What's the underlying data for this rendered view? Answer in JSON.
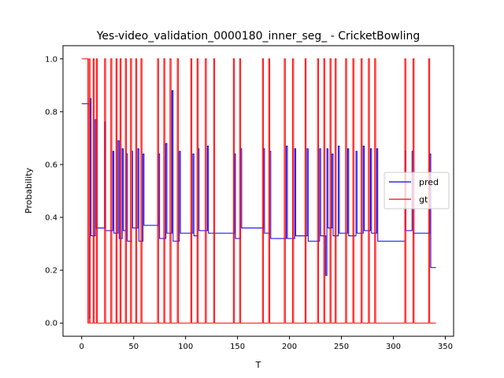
{
  "chart_data": {
    "type": "line",
    "title": "Yes-video_validation_0000180_inner_seg_ - CricketBowling",
    "xlabel": "T",
    "ylabel": "Probability",
    "xlim": [
      -18,
      358
    ],
    "ylim": [
      -0.05,
      1.05
    ],
    "xticks": [
      0,
      50,
      100,
      150,
      200,
      250,
      300,
      350
    ],
    "yticks": [
      0.0,
      0.2,
      0.4,
      0.6,
      0.8,
      1.0
    ],
    "legend_position": "center-right",
    "series": [
      {
        "name": "pred",
        "color": "#0000ff",
        "step": true,
        "points": [
          [
            0,
            0.83
          ],
          [
            6,
            0.83
          ],
          [
            7,
            0.02
          ],
          [
            8,
            0.85
          ],
          [
            9,
            0.33
          ],
          [
            12,
            0.33
          ],
          [
            13,
            0.77
          ],
          [
            14,
            0.36
          ],
          [
            21,
            0.36
          ],
          [
            22,
            0.76
          ],
          [
            23,
            0.35
          ],
          [
            29,
            0.35
          ],
          [
            30,
            0.65
          ],
          [
            31,
            0.34
          ],
          [
            34,
            0.34
          ],
          [
            35,
            0.69
          ],
          [
            36,
            0.32
          ],
          [
            38,
            0.32
          ],
          [
            39,
            0.66
          ],
          [
            40,
            0.35
          ],
          [
            42,
            0.35
          ],
          [
            43,
            0.64
          ],
          [
            44,
            0.31
          ],
          [
            47,
            0.31
          ],
          [
            48,
            0.65
          ],
          [
            49,
            0.36
          ],
          [
            53,
            0.36
          ],
          [
            54,
            0.66
          ],
          [
            55,
            0.31
          ],
          [
            58,
            0.31
          ],
          [
            59,
            0.64
          ],
          [
            60,
            0.37
          ],
          [
            73,
            0.37
          ],
          [
            74,
            0.64
          ],
          [
            75,
            0.32
          ],
          [
            80,
            0.32
          ],
          [
            81,
            0.68
          ],
          [
            82,
            0.34
          ],
          [
            86,
            0.34
          ],
          [
            87,
            0.88
          ],
          [
            88,
            0.31
          ],
          [
            93,
            0.31
          ],
          [
            94,
            0.65
          ],
          [
            95,
            0.34
          ],
          [
            106,
            0.34
          ],
          [
            107,
            0.64
          ],
          [
            108,
            0.33
          ],
          [
            111,
            0.33
          ],
          [
            112,
            0.66
          ],
          [
            113,
            0.35
          ],
          [
            120,
            0.35
          ],
          [
            121,
            0.67
          ],
          [
            122,
            0.34
          ],
          [
            146,
            0.34
          ],
          [
            147,
            0.64
          ],
          [
            148,
            0.32
          ],
          [
            152,
            0.32
          ],
          [
            153,
            0.66
          ],
          [
            154,
            0.36
          ],
          [
            174,
            0.36
          ],
          [
            175,
            0.66
          ],
          [
            176,
            0.34
          ],
          [
            180,
            0.34
          ],
          [
            181,
            0.65
          ],
          [
            182,
            0.32
          ],
          [
            196,
            0.32
          ],
          [
            197,
            0.67
          ],
          [
            198,
            0.32
          ],
          [
            204,
            0.32
          ],
          [
            205,
            0.66
          ],
          [
            206,
            0.33
          ],
          [
            216,
            0.33
          ],
          [
            217,
            0.66
          ],
          [
            218,
            0.31
          ],
          [
            228,
            0.31
          ],
          [
            229,
            0.66
          ],
          [
            230,
            0.33
          ],
          [
            234,
            0.33
          ],
          [
            235,
            0.18
          ],
          [
            236,
            0.66
          ],
          [
            237,
            0.36
          ],
          [
            240,
            0.36
          ],
          [
            241,
            0.64
          ],
          [
            242,
            0.33
          ],
          [
            246,
            0.33
          ],
          [
            247,
            0.67
          ],
          [
            248,
            0.34
          ],
          [
            255,
            0.34
          ],
          [
            256,
            0.66
          ],
          [
            257,
            0.33
          ],
          [
            263,
            0.33
          ],
          [
            264,
            0.65
          ],
          [
            265,
            0.34
          ],
          [
            270,
            0.34
          ],
          [
            271,
            0.67
          ],
          [
            272,
            0.35
          ],
          [
            277,
            0.35
          ],
          [
            278,
            0.66
          ],
          [
            279,
            0.34
          ],
          [
            283,
            0.34
          ],
          [
            284,
            0.66
          ],
          [
            285,
            0.31
          ],
          [
            310,
            0.31
          ],
          [
            311,
            0.65
          ],
          [
            312,
            0.35
          ],
          [
            317,
            0.35
          ],
          [
            318,
            0.65
          ],
          [
            319,
            0.34
          ],
          [
            334,
            0.34
          ],
          [
            335,
            0.64
          ],
          [
            336,
            0.21
          ],
          [
            341,
            0.21
          ]
        ]
      },
      {
        "name": "gt",
        "color": "#ff0000",
        "step": true,
        "points": [
          [
            0,
            1
          ],
          [
            5,
            1
          ],
          [
            6,
            0
          ],
          [
            7,
            1
          ],
          [
            8,
            0
          ],
          [
            10,
            0
          ],
          [
            11,
            1
          ],
          [
            12,
            0
          ],
          [
            13,
            0
          ],
          [
            14,
            1
          ],
          [
            15,
            0
          ],
          [
            21,
            0
          ],
          [
            22,
            1
          ],
          [
            23,
            0
          ],
          [
            27,
            0
          ],
          [
            28,
            1
          ],
          [
            29,
            0
          ],
          [
            32,
            0
          ],
          [
            33,
            1
          ],
          [
            34,
            0
          ],
          [
            36,
            0
          ],
          [
            37,
            1
          ],
          [
            38,
            0
          ],
          [
            41,
            0
          ],
          [
            42,
            1
          ],
          [
            43,
            0
          ],
          [
            46,
            0
          ],
          [
            47,
            1
          ],
          [
            48,
            0
          ],
          [
            51,
            0
          ],
          [
            52,
            1
          ],
          [
            53,
            0
          ],
          [
            56,
            0
          ],
          [
            57,
            1
          ],
          [
            58,
            0
          ],
          [
            72,
            0
          ],
          [
            73,
            1
          ],
          [
            74,
            0
          ],
          [
            78,
            0
          ],
          [
            79,
            1
          ],
          [
            80,
            0
          ],
          [
            84,
            0
          ],
          [
            85,
            1
          ],
          [
            86,
            0
          ],
          [
            91,
            0
          ],
          [
            92,
            1
          ],
          [
            93,
            0
          ],
          [
            104,
            0
          ],
          [
            105,
            1
          ],
          [
            106,
            0
          ],
          [
            110,
            0
          ],
          [
            111,
            1
          ],
          [
            112,
            0
          ],
          [
            118,
            0
          ],
          [
            119,
            1
          ],
          [
            120,
            0
          ],
          [
            126,
            0
          ],
          [
            127,
            1
          ],
          [
            128,
            0
          ],
          [
            145,
            0
          ],
          [
            146,
            1
          ],
          [
            147,
            0
          ],
          [
            151,
            0
          ],
          [
            152,
            1
          ],
          [
            153,
            0
          ],
          [
            173,
            0
          ],
          [
            174,
            1
          ],
          [
            175,
            0
          ],
          [
            179,
            0
          ],
          [
            180,
            1
          ],
          [
            181,
            0
          ],
          [
            194,
            0
          ],
          [
            195,
            1
          ],
          [
            196,
            0
          ],
          [
            202,
            0
          ],
          [
            203,
            1
          ],
          [
            204,
            0
          ],
          [
            214,
            0
          ],
          [
            215,
            1
          ],
          [
            216,
            0
          ],
          [
            226,
            0
          ],
          [
            227,
            1
          ],
          [
            228,
            0
          ],
          [
            232,
            0
          ],
          [
            233,
            1
          ],
          [
            234,
            0
          ],
          [
            238,
            0
          ],
          [
            239,
            1
          ],
          [
            240,
            0
          ],
          [
            243,
            0
          ],
          [
            244,
            1
          ],
          [
            245,
            0
          ],
          [
            253,
            0
          ],
          [
            254,
            1
          ],
          [
            255,
            0
          ],
          [
            260,
            0
          ],
          [
            261,
            1
          ],
          [
            262,
            0
          ],
          [
            268,
            0
          ],
          [
            269,
            1
          ],
          [
            270,
            0
          ],
          [
            275,
            0
          ],
          [
            276,
            1
          ],
          [
            277,
            0
          ],
          [
            281,
            0
          ],
          [
            282,
            1
          ],
          [
            283,
            0
          ],
          [
            310,
            0
          ],
          [
            311,
            1
          ],
          [
            312,
            0
          ],
          [
            318,
            0
          ],
          [
            319,
            1
          ],
          [
            320,
            0
          ],
          [
            333,
            0
          ],
          [
            334,
            1
          ],
          [
            335,
            0
          ],
          [
            341,
            0
          ]
        ]
      }
    ]
  }
}
